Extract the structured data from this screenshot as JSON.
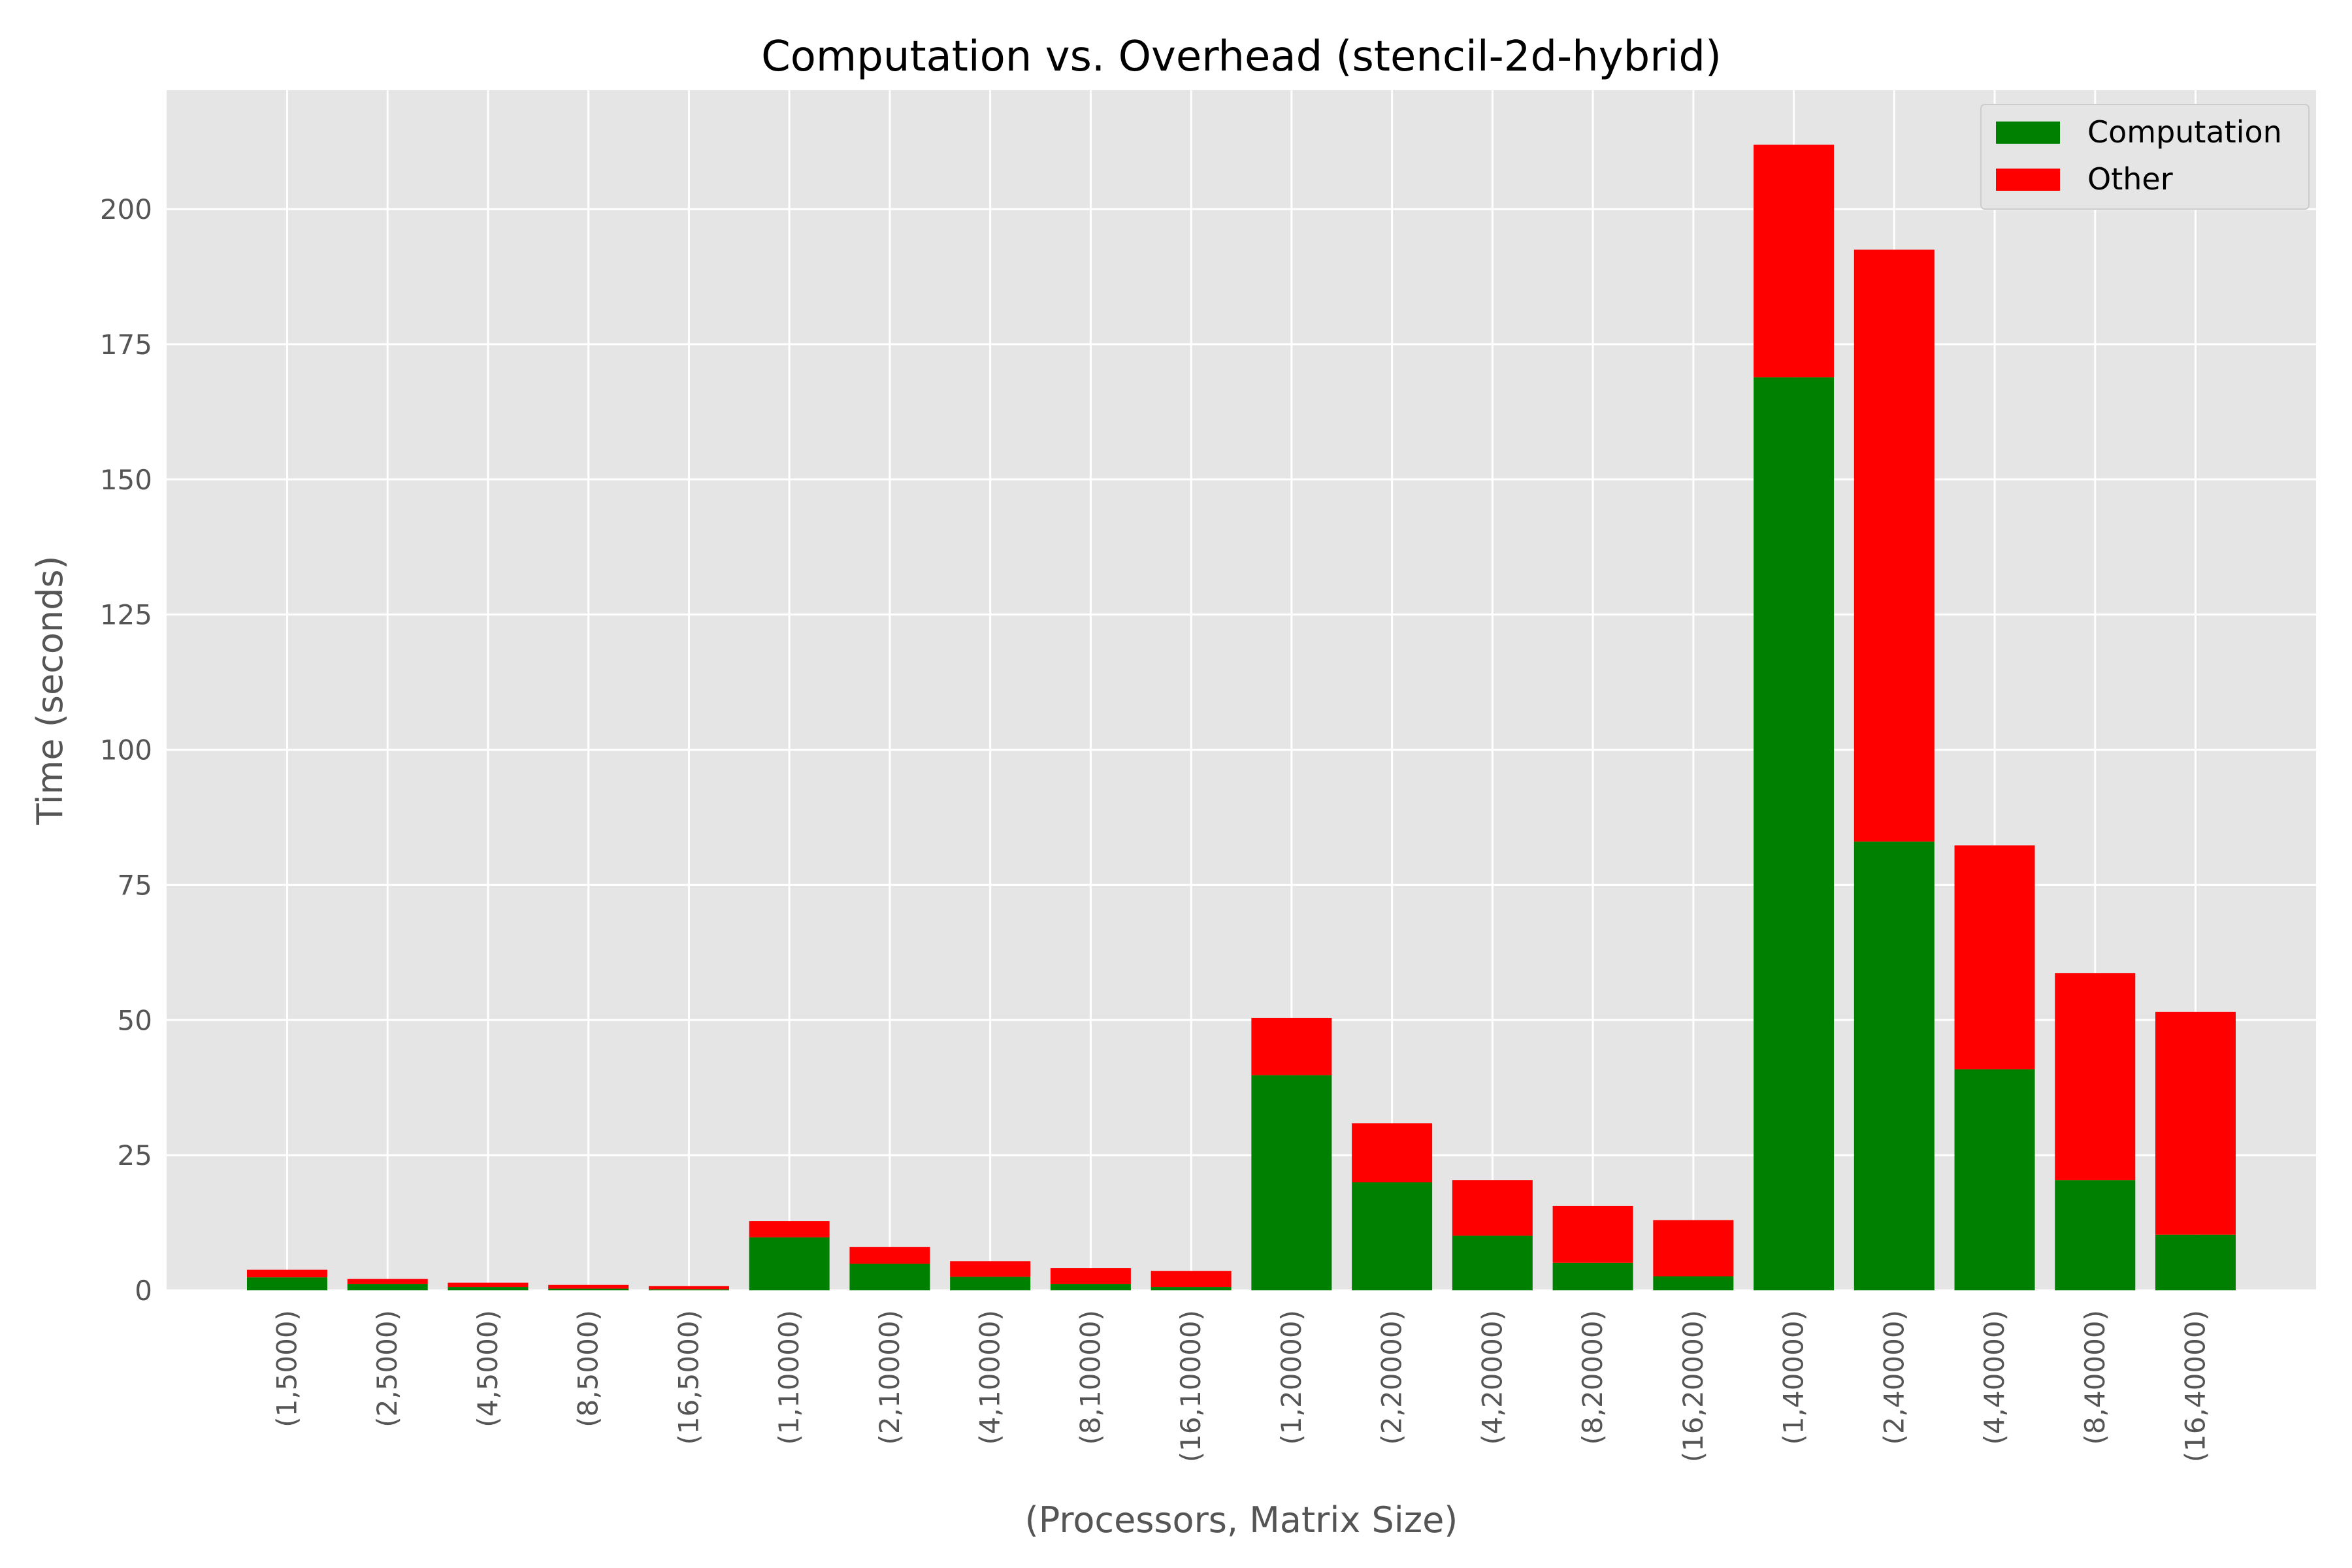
{
  "chart_data": {
    "type": "bar",
    "stacked": true,
    "title": "Computation vs. Overhead (stencil-2d-hybrid)",
    "xlabel": "(Processors, Matrix Size)",
    "ylabel": "Time (seconds)",
    "ylim": [
      0,
      222
    ],
    "yticks": [
      0,
      25,
      50,
      75,
      100,
      125,
      150,
      175,
      200
    ],
    "grid": true,
    "legend_position": "top-right",
    "categories": [
      "(1,5000)",
      "(2,5000)",
      "(4,5000)",
      "(8,5000)",
      "(16,5000)",
      "(1,10000)",
      "(2,10000)",
      "(4,10000)",
      "(8,10000)",
      "(16,10000)",
      "(1,20000)",
      "(2,20000)",
      "(4,20000)",
      "(8,20000)",
      "(16,20000)",
      "(1,40000)",
      "(2,40000)",
      "(4,40000)",
      "(8,40000)",
      "(16,40000)"
    ],
    "series": [
      {
        "name": "Computation",
        "color": "#008000",
        "values": [
          2.4,
          1.2,
          0.6,
          0.3,
          0.2,
          9.8,
          4.9,
          2.5,
          1.2,
          0.6,
          39.8,
          20.0,
          10.1,
          5.1,
          2.6,
          168.9,
          83.0,
          40.9,
          20.4,
          10.3
        ]
      },
      {
        "name": "Other",
        "color": "#ff0000",
        "values": [
          1.4,
          0.9,
          0.8,
          0.7,
          0.6,
          3.0,
          3.1,
          2.9,
          2.9,
          3.0,
          10.6,
          10.9,
          10.3,
          10.5,
          10.4,
          43.0,
          109.5,
          41.4,
          38.3,
          41.2
        ]
      }
    ]
  }
}
